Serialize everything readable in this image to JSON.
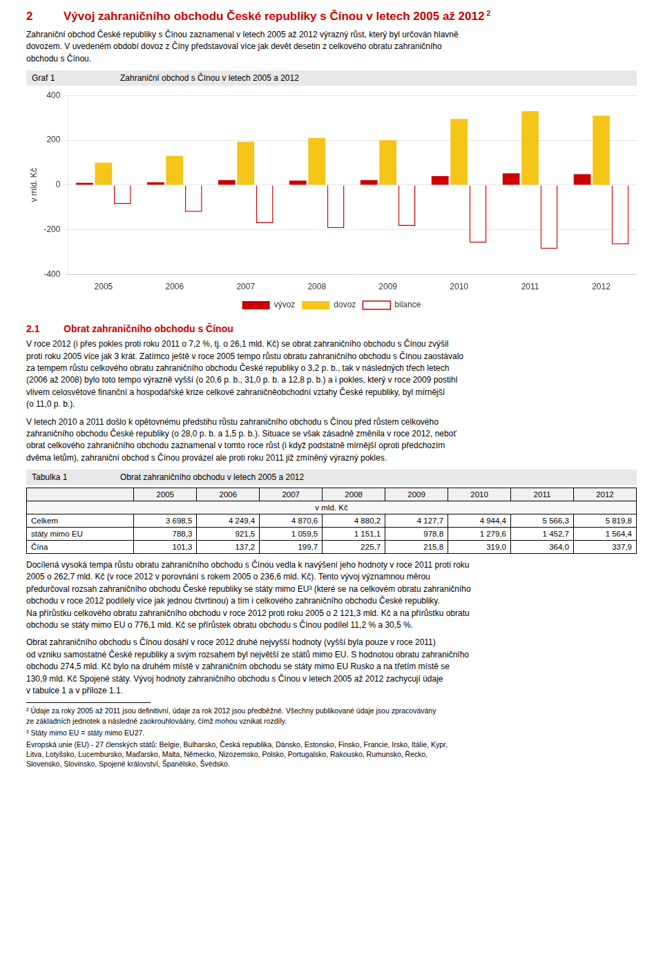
{
  "page": {
    "title_number": "2",
    "title_text": "Vývoj zahraničního obchodu České republiky s Čínou v letech 2005 až 2012",
    "title_superscript": "2",
    "heading_color": "#CC0000",
    "intro": "Zahraniční obchod České republiky s Čínou zaznamenal v letech 2005 až 2012 výrazný růst, který byl určován hlavně\ndovozem. V uvedeném období dovoz z Číny představoval více jak devět desetin z celkového obratu zahraničního\nobchodu s Čínou.",
    "graf_label": "Graf 1",
    "section_number": "2.1",
    "section_title": "Obrat zahraničního obchodu s Čínou",
    "paragraphs_before_table": [
      "V roce 2012 (i přes pokles proti roku 2011 o 7,2 %, tj. o 26,1 mld. Kč) se obrat zahraničního obchodu s Čínou zvýšil\nproti roku 2005 více jak 3 krát. Zatímco ještě v roce 2005 tempo růstu obratu zahraničního obchodu s Čínou zaostávalo\nza tempem růstu celkového obratu zahraničního obchodu České republiky o 3,2 p. b., tak v následných třech letech\n(2006 až 2008) bylo toto tempo výrazně vyšší (o 20,6 p. b., 31,0 p. b. a 12,8 p. b.) a i pokles, který v roce 2009 postihl\nvlivem celosvětové finanční a hospodářské krize celkové zahraničněobchodní vztahy České republiky, byl mírnější\n(o 11,0 p. b.).",
      "V letech 2010 a 2011 došlo k opětovnému předstihu růstu zahraničního obchodu s Čínou před růstem celkového\nzahraničního obchodu České republiky (o 28,0 p. b. a 1,5 p. b.). Situace se však zásadně změnila v roce 2012, neboť\nobrat celkového zahraničního obchodu zaznamenal v tomto roce růst (i když podstatně mírnější oproti předchozím\ndvěma letům), zahraniční obchod s Čínou provázel ale proti roku 2011 již zmíněný výrazný pokles."
    ],
    "table_label": "Tabulka 1",
    "table_title": "Obrat zahraničního obchodu v letech 2005 a 2012",
    "table": {
      "header": [
        "2005",
        "2006",
        "2007",
        "2008",
        "2009",
        "2010",
        "2011",
        "2012"
      ],
      "subheader": "v mld. Kč",
      "rows": [
        [
          "Celkem",
          "3 698,5",
          "4 249,4",
          "4 870,6",
          "4 880,2",
          "4 127,7",
          "4 944,4",
          "5 566,3",
          "5 819,8"
        ],
        [
          "státy mimo EU",
          "788,3",
          "921,5",
          "1 059,5",
          "1 151,1",
          "978,8",
          "1 279,6",
          "1 452,7",
          "1 564,4"
        ],
        [
          "Čína",
          "101,3",
          "137,2",
          "199,7",
          "225,7",
          "215,8",
          "319,0",
          "364,0",
          "337,9"
        ]
      ]
    },
    "paragraphs_after_table": [
      "Docílená vysoká tempa růstu obratu zahraničního obchodu s Čínou vedla k navýšení jeho hodnoty v roce 2011 proti roku\n2005 o 262,7 mld. Kč (v roce 2012 v porovnání s rokem 2005 o 236,6 mld. Kč). Tento vývoj významnou měrou\npředurčoval rozsah zahraničního obchodu České republiky se státy mimo EU³ (které se na celkovém obratu zahraničního\nobchodu v roce 2012 podílely více jak jednou čtvrtinou) a tím i celkového zahraničního obchodu České republiky.\nNa přírůstku celkového obratu zahraničního obchodu v roce 2012 proti roku 2005 o 2 121,3 mld. Kč a na přírůstku obratu\nobchodu se státy mimo EU o 776,1 mld. Kč se přírůstek obratu obchodu s Čínou podílel 11,2 % a 30,5 %.",
      "Obrat zahraničního obchodu s Čínou dosáhl v roce 2012 druhé nejvyšší hodnoty (vyšší byla pouze v roce 2011)\nod vzniku samostatné České republiky a svým rozsahem byl největší ze států mimo EU. S hodnotou obratu zahraničního\nobchodu 274,5 mld. Kč bylo na druhém místě v zahraničním obchodu se státy mimo EU Rusko a na třetím místě se\n130,9 mld. Kč Spojené státy. Vývoj hodnoty zahraničního obchodu s Čínou v letech 2005 až 2012 zachycují údaje\nv tabulce 1 a v příloze 1.1."
    ],
    "footnotes": [
      "² Údaje za roky 2005 až 2011 jsou definitivní, údaje za rok 2012 jsou předběžné. Všechny publikované údaje jsou zpracovávány\nze základních jednotek a následně zaokrouhlováány, čímž mohou vznikat rozdíly.",
      "³ Státy mimo EU = státy mimo EU27.",
      "Evropská unie (EU) - 27 členských států: Belgie, Bulharsko, Česká republika, Dánsko, Estonsko, Finsko, Francie, Irsko, Itálie, Kypr,\nLitva, Lotyšsko, Lucembursko, Maďarsko, Malta, Německo, Nizozemsko, Polsko, Portugalsko, Rakousko, Rumunsko, Řecko,\nSlovensko, Slovinsko, Spojené království, Španělsko, Švédsko."
    ]
  },
  "chart_data": {
    "type": "bar",
    "title": "Zahraniční obchod s Čínou v letech 2005 a 2012",
    "ylabel": "v mld. Kč",
    "categories": [
      "2005",
      "2006",
      "2007",
      "2008",
      "2009",
      "2010",
      "2011",
      "2012"
    ],
    "series": [
      {
        "name": "vývoz",
        "color": "#CC0000",
        "values": [
          10,
          12,
          22,
          20,
          22,
          40,
          52,
          48
        ]
      },
      {
        "name": "dovoz",
        "color": "#F5C518",
        "values": [
          100,
          130,
          193,
          210,
          200,
          295,
          330,
          310
        ]
      },
      {
        "name": "bilance",
        "color": "#CC0000",
        "values": [
          -85,
          -120,
          -170,
          -192,
          -182,
          -258,
          -285,
          -265
        ]
      }
    ],
    "ylim": [
      -400,
      400
    ],
    "yticks": [
      -400,
      -200,
      0,
      200,
      400
    ],
    "grid": true,
    "legend": "bottom"
  }
}
